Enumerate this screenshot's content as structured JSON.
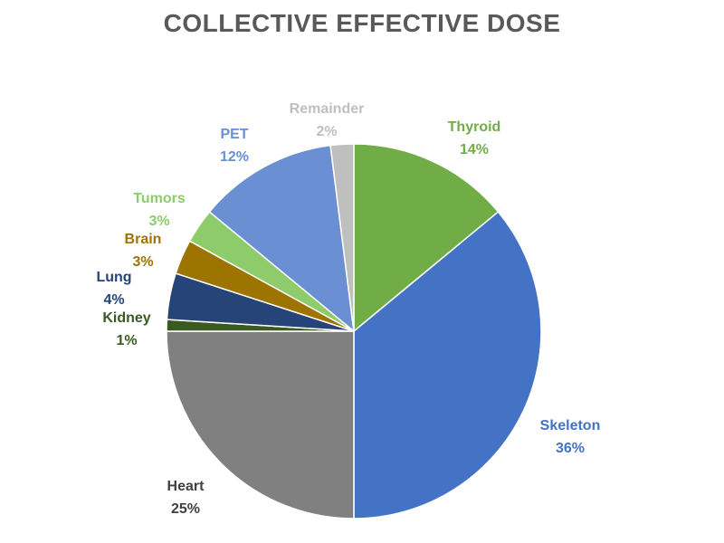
{
  "chart_data": {
    "type": "pie",
    "title": "COLLECTIVE EFFECTIVE DOSE",
    "slices": [
      {
        "name": "Thyroid",
        "value": 14,
        "label": "14%",
        "color": "#70ad47"
      },
      {
        "name": "Skeleton",
        "value": 36,
        "label": "36%",
        "color": "#4472c4"
      },
      {
        "name": "Heart",
        "value": 25,
        "label": "25%",
        "color": "#808080"
      },
      {
        "name": "Kidney",
        "value": 1,
        "label": "1%",
        "color": "#3a5a22"
      },
      {
        "name": "Lung",
        "value": 4,
        "label": "4%",
        "color": "#264478"
      },
      {
        "name": "Brain",
        "value": 3,
        "label": "3%",
        "color": "#9e7400"
      },
      {
        "name": "Tumors",
        "value": 3,
        "label": "3%",
        "color": "#8ecb6a"
      },
      {
        "name": "PET",
        "value": 12,
        "label": "12%",
        "color": "#6a8fd3"
      },
      {
        "name": "Remainder",
        "value": 2,
        "label": "2%",
        "color": "#bfbfbf"
      }
    ],
    "legend": "none"
  }
}
